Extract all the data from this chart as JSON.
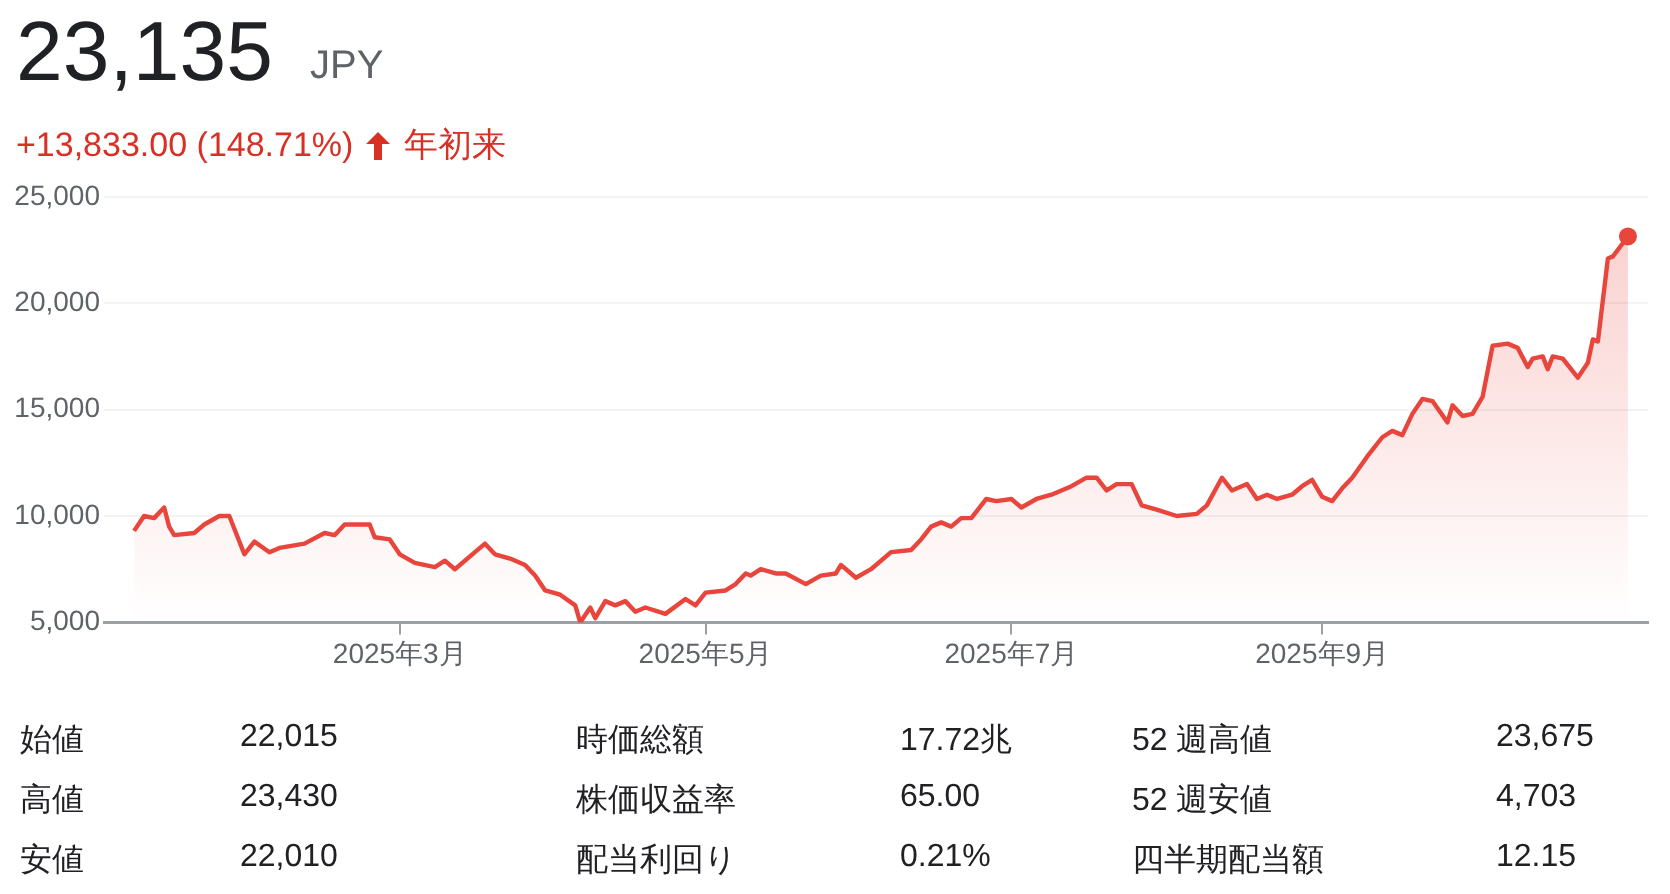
{
  "chart_data": {
    "type": "area",
    "title": "23,135",
    "subtitle": "JPY",
    "annotations": [
      "+13,833.00 (148.71%)",
      "年初来",
      "始値",
      "22,015",
      "時価総額",
      "17.72兆",
      "52 週高値",
      "23,675",
      "高値",
      "23,430",
      "株価収益率",
      "65.00",
      "52 週安値",
      "4,703",
      "安値",
      "22,010",
      "配当利回り",
      "0.21%",
      "四半期配当額",
      "12.15"
    ],
    "x": [
      "2025-01-07",
      "2025-01-09",
      "2025-01-11",
      "2025-01-13",
      "2025-01-14",
      "2025-01-15",
      "2025-01-19",
      "2025-01-21",
      "2025-01-24",
      "2025-01-26",
      "2025-01-29",
      "2025-01-31",
      "2025-02-03",
      "2025-02-05",
      "2025-02-10",
      "2025-02-14",
      "2025-02-16",
      "2025-02-18",
      "2025-02-23",
      "2025-02-24",
      "2025-02-27",
      "2025-03-01",
      "2025-03-04",
      "2025-03-08",
      "2025-03-10",
      "2025-03-12",
      "2025-03-16",
      "2025-03-18",
      "2025-03-20",
      "2025-03-23",
      "2025-03-26",
      "2025-03-28",
      "2025-03-30",
      "2025-04-02",
      "2025-04-05",
      "2025-04-06",
      "2025-04-08",
      "2025-04-09",
      "2025-04-11",
      "2025-04-13",
      "2025-04-15",
      "2025-04-17",
      "2025-04-19",
      "2025-04-23",
      "2025-04-27",
      "2025-04-29",
      "2025-05-01",
      "2025-05-05",
      "2025-05-07",
      "2025-05-09",
      "2025-05-10",
      "2025-05-12",
      "2025-05-15",
      "2025-05-17",
      "2025-05-21",
      "2025-05-24",
      "2025-05-27",
      "2025-05-28",
      "2025-05-31",
      "2025-06-03",
      "2025-06-07",
      "2025-06-11",
      "2025-06-13",
      "2025-06-15",
      "2025-06-17",
      "2025-06-19",
      "2025-06-21",
      "2025-06-23",
      "2025-06-26",
      "2025-06-28",
      "2025-07-01",
      "2025-07-03",
      "2025-07-06",
      "2025-07-09",
      "2025-07-13",
      "2025-07-16",
      "2025-07-18",
      "2025-07-20",
      "2025-07-22",
      "2025-07-25",
      "2025-07-27",
      "2025-07-30",
      "2025-08-03",
      "2025-08-07",
      "2025-08-09",
      "2025-08-12",
      "2025-08-14",
      "2025-08-17",
      "2025-08-19",
      "2025-08-21",
      "2025-08-23",
      "2025-08-26",
      "2025-08-28",
      "2025-08-30",
      "2025-09-01",
      "2025-09-03",
      "2025-09-05",
      "2025-09-07",
      "2025-09-10",
      "2025-09-13",
      "2025-09-15",
      "2025-09-17",
      "2025-09-19",
      "2025-09-21",
      "2025-09-23",
      "2025-09-26",
      "2025-09-27",
      "2025-09-29",
      "2025-10-01",
      "2025-10-03",
      "2025-10-05",
      "2025-10-08",
      "2025-10-10",
      "2025-10-12",
      "2025-10-13",
      "2025-10-15",
      "2025-10-16",
      "2025-10-17",
      "2025-10-19",
      "2025-10-22",
      "2025-10-24",
      "2025-10-25",
      "2025-10-26",
      "2025-10-28",
      "2025-10-29",
      "2025-11-01"
    ],
    "series": [
      {
        "color": "#e8453c",
        "values": [
          9300,
          10000,
          9900,
          10400,
          9500,
          9100,
          9200,
          9600,
          10000,
          10000,
          8200,
          8800,
          8300,
          8500,
          8700,
          9200,
          9100,
          9600,
          9600,
          9000,
          8900,
          8200,
          7800,
          7600,
          7900,
          7500,
          8300,
          8700,
          8200,
          8000,
          7700,
          7200,
          6500,
          6300,
          5800,
          5000,
          5700,
          5200,
          6000,
          5800,
          6000,
          5500,
          5700,
          5400,
          6100,
          5800,
          6400,
          6500,
          6800,
          7300,
          7200,
          7500,
          7300,
          7300,
          6800,
          7200,
          7300,
          7700,
          7100,
          7500,
          8300,
          8400,
          8900,
          9500,
          9700,
          9500,
          9900,
          9900,
          10800,
          10700,
          10800,
          10400,
          10800,
          11000,
          11400,
          11800,
          11800,
          11200,
          11500,
          11500,
          10500,
          10300,
          10000,
          10100,
          10500,
          11800,
          11200,
          11500,
          10800,
          11000,
          10800,
          11000,
          11400,
          11700,
          10900,
          10700,
          11300,
          11800,
          12800,
          13700,
          14000,
          13800,
          14800,
          15500,
          15400,
          14400,
          15200,
          14700,
          14800,
          15600,
          18000,
          18100,
          17900,
          17000,
          17400,
          17500,
          16900,
          17500,
          17400,
          16500,
          17200,
          18300,
          18200,
          22100,
          22200,
          23135
        ]
      }
    ],
    "ylim": [
      5000,
      25000
    ],
    "yticks": [
      {
        "value": 5000,
        "label": "5,000"
      },
      {
        "value": 10000,
        "label": "10,000"
      },
      {
        "value": 15000,
        "label": "15,000"
      },
      {
        "value": 20000,
        "label": "20,000"
      },
      {
        "value": 25000,
        "label": "25,000"
      }
    ],
    "xlim": [
      "2025-01-01",
      "2025-11-05"
    ],
    "xticks": [
      {
        "value": "2025-03-01",
        "label": "2025年3月"
      },
      {
        "value": "2025-05-01",
        "label": "2025年5月"
      },
      {
        "value": "2025-07-01",
        "label": "2025年7月"
      },
      {
        "value": "2025-09-01",
        "label": "2025年9月"
      }
    ],
    "grid": "y",
    "legend": false
  }
}
